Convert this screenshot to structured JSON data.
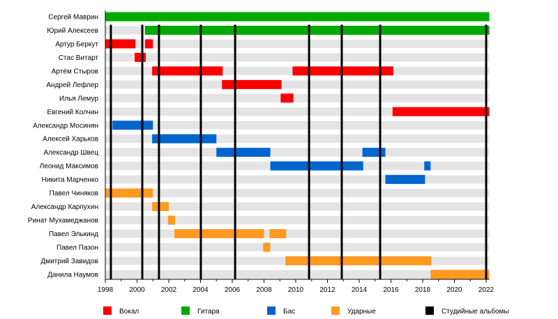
{
  "chart_data": {
    "type": "timeline",
    "title": "",
    "xlim": [
      1998,
      2022.2
    ],
    "x_ticks": [
      1998,
      2000,
      2002,
      2004,
      2006,
      2008,
      2010,
      2012,
      2014,
      2016,
      2018,
      2020,
      2022
    ],
    "colors": {
      "vocal": "#ff0000",
      "guitar": "#00aa00",
      "bass": "#0066cc",
      "drums": "#ff9922",
      "albums": "#000000"
    },
    "legend": [
      {
        "key": "vocal",
        "label": "Вокал"
      },
      {
        "key": "guitar",
        "label": "Гитара"
      },
      {
        "key": "bass",
        "label": "Бас"
      },
      {
        "key": "drums",
        "label": "Ударные"
      },
      {
        "key": "albums",
        "label": "Студийные альбомы"
      }
    ],
    "albums": [
      1998.35,
      2000.33,
      2001.38,
      2004.02,
      2006.18,
      2010.84,
      2012.9,
      2015.32,
      2022.0
    ],
    "members": [
      {
        "name": "Сергей Маврин",
        "periods": [
          {
            "role": "guitar",
            "from": 1998.0,
            "to": 2022.2
          }
        ]
      },
      {
        "name": "Юрий Алексеев",
        "periods": [
          {
            "role": "guitar",
            "from": 2000.5,
            "to": 2022.2
          }
        ]
      },
      {
        "name": "Артур Беркут",
        "periods": [
          {
            "role": "vocal",
            "from": 1998.0,
            "to": 1999.9
          },
          {
            "role": "vocal",
            "from": 2000.5,
            "to": 2001.0
          }
        ]
      },
      {
        "name": "Стас Витарт",
        "periods": [
          {
            "role": "vocal",
            "from": 1999.85,
            "to": 2000.55
          }
        ]
      },
      {
        "name": "Артём Стыров",
        "periods": [
          {
            "role": "vocal",
            "from": 2000.95,
            "to": 2005.4
          },
          {
            "role": "vocal",
            "from": 2009.8,
            "to": 2016.15
          }
        ]
      },
      {
        "name": "Андрей Лефлер",
        "periods": [
          {
            "role": "vocal",
            "from": 2005.35,
            "to": 2009.1
          }
        ]
      },
      {
        "name": "Илья Лемур",
        "periods": [
          {
            "role": "vocal",
            "from": 2009.05,
            "to": 2009.85
          }
        ]
      },
      {
        "name": "Евгений Колчин",
        "periods": [
          {
            "role": "vocal",
            "from": 2016.1,
            "to": 2022.2
          }
        ]
      },
      {
        "name": "Александр Мосинян",
        "periods": [
          {
            "role": "bass",
            "from": 1998.45,
            "to": 2001.0
          }
        ]
      },
      {
        "name": "Алексей Харьков",
        "periods": [
          {
            "role": "bass",
            "from": 2000.95,
            "to": 2005.0
          }
        ]
      },
      {
        "name": "Александр Швец",
        "periods": [
          {
            "role": "bass",
            "from": 2005.0,
            "to": 2008.4
          },
          {
            "role": "bass",
            "from": 2014.2,
            "to": 2015.65
          }
        ]
      },
      {
        "name": "Леонид Максимов",
        "periods": [
          {
            "role": "bass",
            "from": 2008.4,
            "to": 2014.25
          },
          {
            "role": "bass",
            "from": 2018.1,
            "to": 2018.5
          }
        ]
      },
      {
        "name": "Никита Марченко",
        "periods": [
          {
            "role": "bass",
            "from": 2015.65,
            "to": 2018.15
          }
        ]
      },
      {
        "name": "Павел Чиняков",
        "periods": [
          {
            "role": "drums",
            "from": 1998.0,
            "to": 2001.0
          }
        ]
      },
      {
        "name": "Александр Карпухин",
        "periods": [
          {
            "role": "drums",
            "from": 2000.95,
            "to": 2002.0
          }
        ]
      },
      {
        "name": "Ринат Мухамеджанов",
        "periods": [
          {
            "role": "drums",
            "from": 2001.95,
            "to": 2002.4
          }
        ]
      },
      {
        "name": "Павел Элькинд",
        "periods": [
          {
            "role": "drums",
            "from": 2002.35,
            "to": 2008.0
          },
          {
            "role": "drums",
            "from": 2008.35,
            "to": 2009.4
          }
        ]
      },
      {
        "name": "Павел Пазон",
        "periods": [
          {
            "role": "drums",
            "from": 2007.95,
            "to": 2008.4
          }
        ]
      },
      {
        "name": "Дмитрий Завидов",
        "periods": [
          {
            "role": "drums",
            "from": 2009.35,
            "to": 2018.55
          }
        ]
      },
      {
        "name": "Данила Наумов",
        "periods": [
          {
            "role": "drums",
            "from": 2018.5,
            "to": 2022.2
          }
        ]
      }
    ]
  }
}
